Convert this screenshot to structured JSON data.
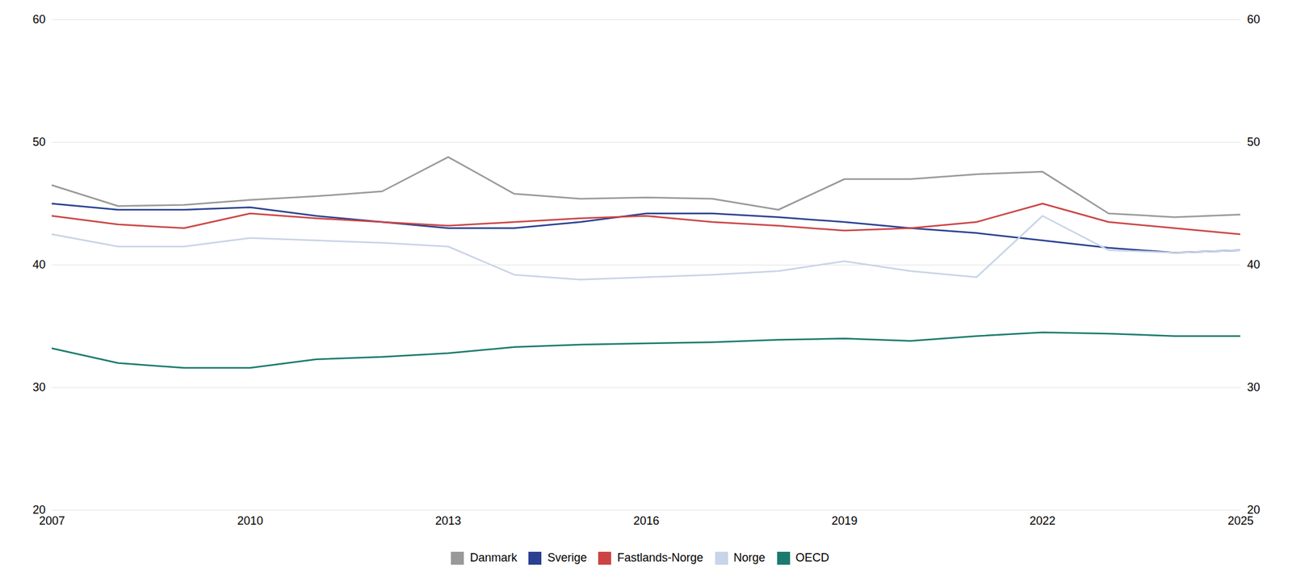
{
  "chart_data": {
    "type": "line",
    "x": [
      2007,
      2008,
      2009,
      2010,
      2011,
      2012,
      2013,
      2014,
      2015,
      2016,
      2017,
      2018,
      2019,
      2020,
      2021,
      2022,
      2023,
      2024,
      2025
    ],
    "series": [
      {
        "name": "Danmark",
        "color": "#999999",
        "values": [
          46.5,
          44.8,
          44.9,
          45.3,
          45.6,
          46.0,
          48.8,
          45.8,
          45.4,
          45.5,
          45.4,
          44.5,
          47.0,
          47.0,
          47.4,
          47.6,
          44.2,
          43.9,
          44.1
        ]
      },
      {
        "name": "Sverige",
        "color": "#2a4090",
        "values": [
          45.0,
          44.5,
          44.5,
          44.7,
          44.0,
          43.5,
          43.0,
          43.0,
          43.5,
          44.2,
          44.2,
          43.9,
          43.5,
          43.0,
          42.6,
          42.0,
          41.4,
          41.0,
          41.2
        ]
      },
      {
        "name": "Fastlands-Norge",
        "color": "#cc4444",
        "values": [
          44.0,
          43.3,
          43.0,
          44.2,
          43.8,
          43.5,
          43.2,
          43.5,
          43.8,
          44.0,
          43.5,
          43.2,
          42.8,
          43.0,
          43.5,
          45.0,
          43.5,
          43.0,
          42.5
        ]
      },
      {
        "name": "Norge",
        "color": "#c8d4e8",
        "values": [
          42.5,
          41.5,
          41.5,
          42.2,
          42.0,
          41.8,
          41.5,
          39.2,
          38.8,
          39.0,
          39.2,
          39.5,
          40.3,
          39.5,
          39.0,
          44.0,
          41.2,
          41.0,
          41.2
        ]
      },
      {
        "name": "OECD",
        "color": "#1a7a6e",
        "values": [
          33.2,
          32.0,
          31.6,
          31.6,
          32.3,
          32.5,
          32.8,
          33.3,
          33.5,
          33.6,
          33.7,
          33.9,
          34.0,
          33.8,
          34.2,
          34.5,
          34.4,
          34.2,
          34.2
        ]
      }
    ],
    "xlim": [
      2007,
      2025
    ],
    "xticks": [
      2007,
      2010,
      2013,
      2016,
      2019,
      2022,
      2025
    ],
    "ylim": [
      20,
      60
    ],
    "yticks": [
      20,
      30,
      40,
      50,
      60
    ],
    "y2lim": [
      20,
      60
    ],
    "y2ticks": [
      20,
      30,
      40,
      50,
      60
    ],
    "grid": true,
    "legend": "lower center"
  }
}
